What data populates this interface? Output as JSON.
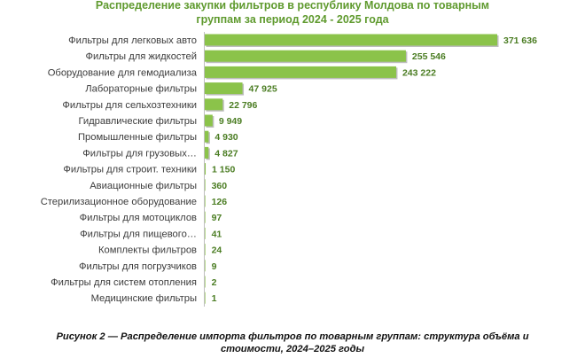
{
  "chart_data": {
    "type": "bar",
    "orientation": "horizontal",
    "title_lines": [
      "Распределение закупки фильтров в республику Молдова по товарным",
      "группам за период 2024 - 2025 года"
    ],
    "categories": [
      "Фильтры для легковых авто",
      "Фильтры для жидкостей",
      "Оборудование для гемодиализа",
      "Лабораторные фильтры",
      "Фильтры для сельхозтехники",
      "Гидравлические фильтры",
      "Промышленные фильтры",
      "Фильтры для грузовых…",
      "Фильтры для строит. техники",
      "Авиационные фильтры",
      "Стерилизационное оборудование",
      "Фильтры для мотоциклов",
      "Фильтры для пищевого…",
      "Комплекты фильтров",
      "Фильтры для погрузчиков",
      "Фильтры для систем отопления",
      "Медицинские фильтры"
    ],
    "values": [
      371636,
      255546,
      243222,
      47925,
      22796,
      9949,
      4930,
      4827,
      1150,
      360,
      126,
      97,
      41,
      24,
      9,
      2,
      1
    ],
    "value_labels": [
      "371 636",
      "255 546",
      "243 222",
      "47 925",
      "22 796",
      "9 949",
      "4 930",
      "4 827",
      "1 150",
      "360",
      "126",
      "97",
      "41",
      "24",
      "9",
      "2",
      "1"
    ],
    "xlim": [
      0,
      371636
    ],
    "grid": false,
    "legend": "none",
    "bar_color": "#8bc34a",
    "bar_shadow_color": "#bdbdbd",
    "title_color": "#5f9a2e",
    "value_label_color": "#4b7d23"
  },
  "caption": {
    "line1": "Рисунок 2 — Распределение импорта фильтров по товарным группам: структура объёма и",
    "line2": "стоимости, 2024–2025 годы"
  }
}
